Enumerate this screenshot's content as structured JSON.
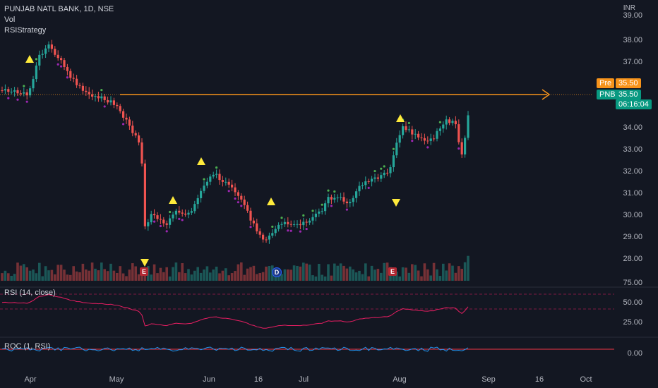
{
  "legend": {
    "symbol_line": "PUNJAB NATL BANK, 1D, NSE",
    "vol_label": "Vol",
    "strategy_label": "RSIStrategy"
  },
  "price_axis": {
    "currency": "INR",
    "ticks": [
      "39.00",
      "38.00",
      "37.00",
      "34.00",
      "33.00",
      "32.00",
      "31.00",
      "30.00",
      "29.00",
      "28.00"
    ]
  },
  "price_tags": {
    "pre_label": "Pre",
    "pre_value": "35.50",
    "symbol_label": "PNB",
    "last_value": "35.50",
    "countdown": "06:16:04"
  },
  "rsi_pane": {
    "title": "RSI (14, close)",
    "ticks": [
      "75.00",
      "50.00",
      "25.00"
    ]
  },
  "roc_pane": {
    "title": "ROC (1, RSI)",
    "ticks": [
      "0.00"
    ]
  },
  "time_axis": {
    "labels": [
      "Apr",
      "May",
      "Jun",
      "16",
      "Jul",
      "Aug",
      "Sep",
      "16",
      "Oct"
    ]
  },
  "events": {
    "earnings_1": "E",
    "dividend": "D",
    "earnings_2": "E"
  },
  "colors": {
    "background": "#131722",
    "up": "#26a69a",
    "down": "#ef5350",
    "signal_triangle": "#ffeb3b",
    "price_line": "#f7931a",
    "rsi_line": "#e91e63",
    "roc_line": "#2196f3",
    "roc_zero": "#f23645",
    "dot_green": "#4caf50",
    "dot_purple": "#9c27b0",
    "dot_white": "#ffffff"
  }
}
